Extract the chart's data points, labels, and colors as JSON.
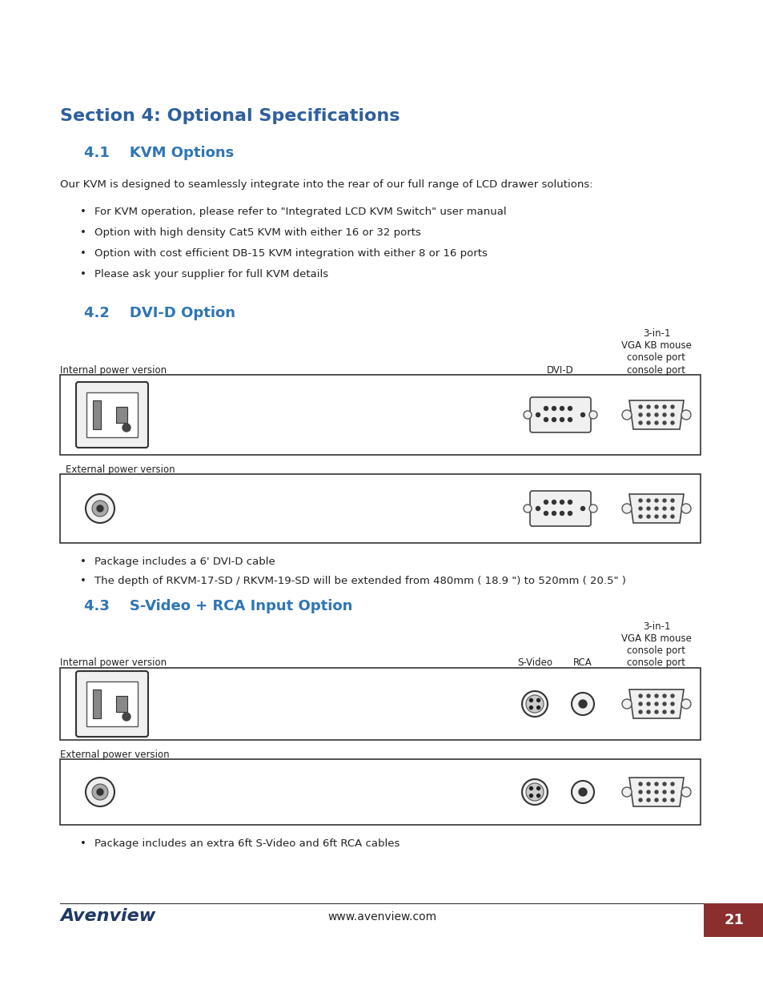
{
  "bg_color": "#ffffff",
  "section_title": "Section 4: Optional Specifications",
  "section_title_color": "#2E5F9E",
  "sub1_title": "4.1    KVM Options",
  "sub1_title_color": "#2E75B6",
  "kvm_intro": "Our KVM is designed to seamlessly integrate into the rear of our full range of LCD drawer solutions:",
  "kvm_bullets": [
    "For KVM operation, please refer to \"Integrated LCD KVM Switch\" user manual",
    "Option with high density Cat5 KVM with either 16 or 32 ports",
    "Option with cost efficient DB-15 KVM integration with either 8 or 16 ports",
    "Please ask your supplier for full KVM details"
  ],
  "sub2_title": "4.2    DVI-D Option",
  "sub2_title_color": "#2E75B6",
  "dvi_label1": "3-in-1",
  "dvi_label2": "VGA KB mouse",
  "dvi_label3": "console port",
  "dvi_label_dvid": "DVI-D",
  "dvi_internal_label": "Internal power version",
  "dvi_external_label": "External power version",
  "dvi_bullets": [
    "Package includes a 6' DVI-D cable",
    "The depth of RKVM-17-SD / RKVM-19-SD will be extended from 480mm ( 18.9 \") to 520mm ( 20.5\" )"
  ],
  "sub3_title": "4.3    S-Video + RCA Input Option",
  "sub3_title_color": "#2E75B6",
  "sv_label1": "3-in-1",
  "sv_label2": "VGA KB mouse",
  "sv_label3": "console port",
  "sv_label_svideo": "S-Video",
  "sv_label_rca": "RCA",
  "sv_internal_label": "Internal power version",
  "sv_external_label": "External power version",
  "sv_bullets": [
    "Package includes an extra 6ft S-Video and 6ft RCA cables"
  ],
  "footer_logo_text": "Avenview",
  "footer_logo_color": "#1F3864",
  "footer_url": "www.avenview.com",
  "footer_page": "21",
  "footer_page_bg": "#8B2E2E",
  "footer_page_color": "#ffffff",
  "box_line_color": "#333333",
  "box_fill_color": "#ffffff",
  "text_color": "#222222"
}
